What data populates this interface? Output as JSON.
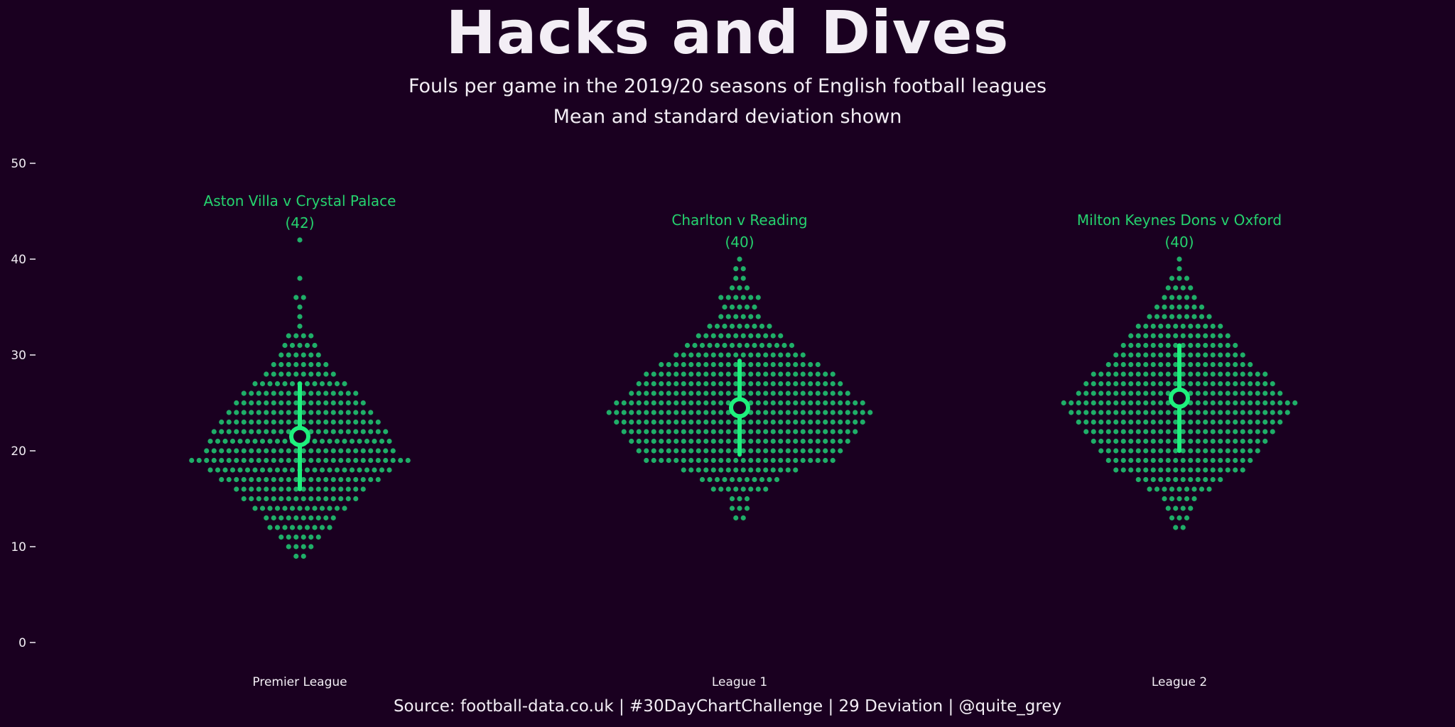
{
  "chart_data": {
    "type": "scatter",
    "subtype": "beeswarm",
    "title": "Hacks and Dives",
    "subtitle_lines": [
      "Fouls per game in the 2019/20 seasons of English football leagues",
      "Mean and standard deviation shown"
    ],
    "caption": "Source: football-data.co.uk  |  #30DayChartChallenge  |  29 Deviation  |  @quite_grey",
    "xlabel": "",
    "ylabel": "",
    "ylim": [
      0,
      50
    ],
    "yticks": [
      0,
      10,
      20,
      30,
      40,
      50
    ],
    "grid": false,
    "legend": "none",
    "colors": {
      "background": "#1a0020",
      "point": "#1fae68",
      "mean": "#1ef07d",
      "annotation": "#25d36f",
      "text": "#f3eef5"
    },
    "categories": [
      "Premier League",
      "League 1",
      "League 2"
    ],
    "series": [
      {
        "category": "Premier League",
        "mean": 21.5,
        "sd": 5.5,
        "max_label": "Aston Villa v Crystal Palace",
        "max_value_label": "(42)",
        "counts": {
          "9": 2,
          "10": 4,
          "11": 6,
          "12": 9,
          "13": 10,
          "14": 13,
          "15": 16,
          "16": 18,
          "17": 22,
          "18": 25,
          "19": 30,
          "20": 26,
          "21": 25,
          "22": 24,
          "23": 22,
          "24": 20,
          "25": 18,
          "26": 16,
          "27": 13,
          "28": 10,
          "29": 8,
          "30": 6,
          "31": 5,
          "32": 4,
          "33": 1,
          "34": 1,
          "35": 1,
          "36": 2,
          "38": 1,
          "42": 1
        }
      },
      {
        "category": "League 1",
        "mean": 24.5,
        "sd": 4.9,
        "max_label": "Charlton v Reading",
        "max_value_label": "(40)",
        "counts": {
          "13": 2,
          "14": 3,
          "15": 3,
          "16": 8,
          "17": 11,
          "18": 16,
          "19": 26,
          "20": 28,
          "21": 30,
          "22": 32,
          "23": 34,
          "24": 36,
          "25": 34,
          "26": 30,
          "27": 28,
          "28": 26,
          "29": 22,
          "30": 18,
          "31": 15,
          "32": 12,
          "33": 9,
          "34": 6,
          "35": 5,
          "36": 6,
          "37": 3,
          "38": 2,
          "39": 2,
          "40": 1
        }
      },
      {
        "category": "League 2",
        "mean": 25.5,
        "sd": 5.5,
        "max_label": "Milton Keynes Dons v Oxford",
        "max_value_label": "(40)",
        "counts": {
          "12": 2,
          "13": 3,
          "14": 4,
          "15": 5,
          "16": 9,
          "17": 12,
          "18": 18,
          "19": 20,
          "20": 22,
          "21": 24,
          "22": 26,
          "23": 28,
          "24": 30,
          "25": 32,
          "26": 28,
          "27": 26,
          "28": 24,
          "29": 20,
          "30": 18,
          "31": 16,
          "32": 14,
          "33": 12,
          "34": 9,
          "35": 7,
          "36": 5,
          "37": 4,
          "38": 3,
          "39": 1,
          "40": 1
        }
      }
    ]
  }
}
